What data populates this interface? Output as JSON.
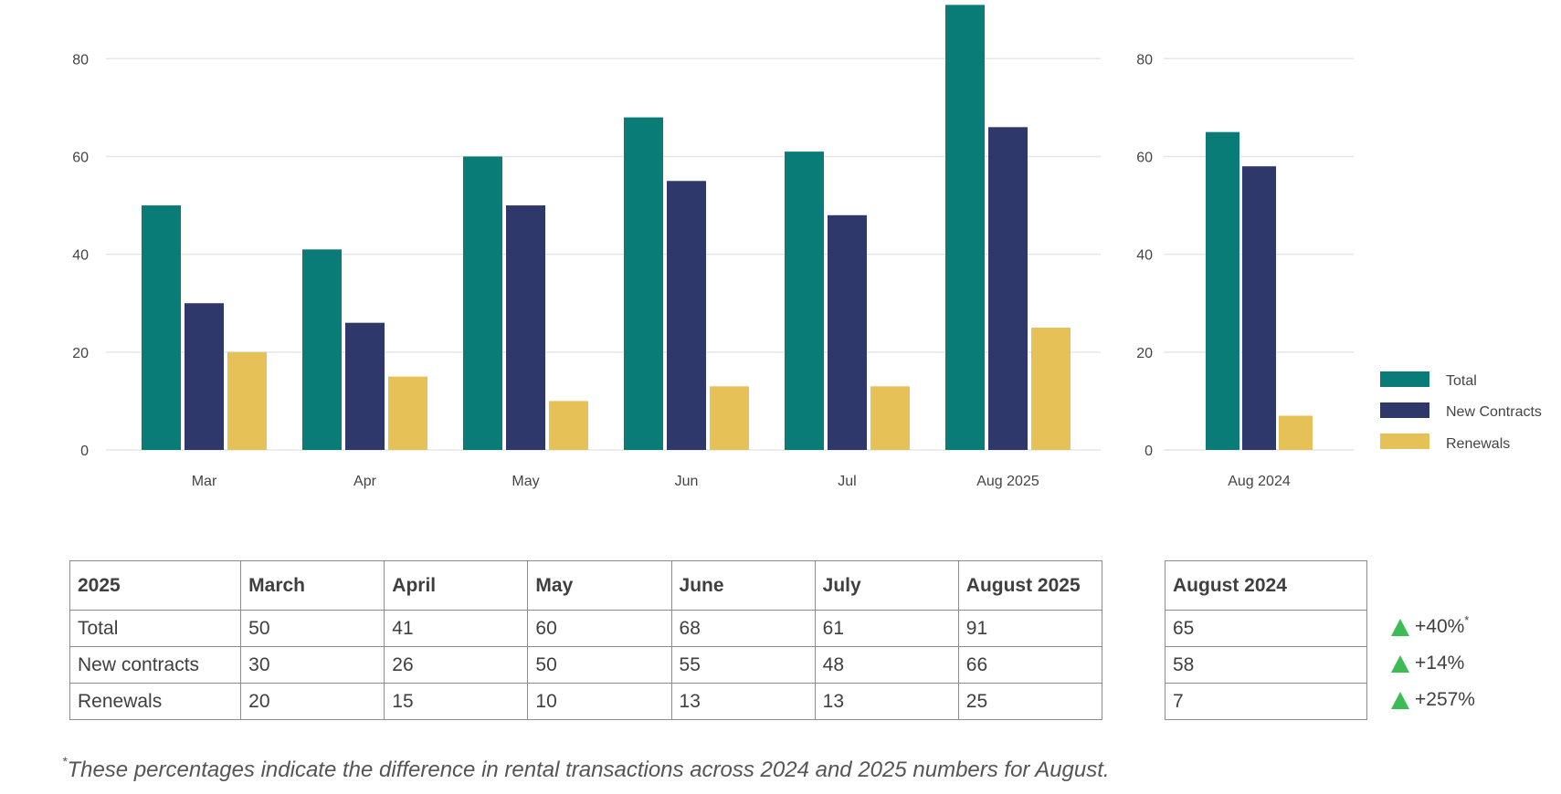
{
  "colors": {
    "total": "#0a7c78",
    "new_contracts": "#2f386b",
    "renewals": "#e5c158",
    "gridline": "#e6e6e6",
    "arrow_up": "#3dbb55"
  },
  "chart_data": [
    {
      "type": "bar",
      "categories": [
        "Mar",
        "Apr",
        "May",
        "Jun",
        "Jul",
        "Aug 2025"
      ],
      "series": [
        {
          "name": "Total",
          "values": [
            50,
            41,
            60,
            68,
            61,
            91
          ]
        },
        {
          "name": "New Contracts",
          "values": [
            30,
            26,
            50,
            55,
            48,
            66
          ]
        },
        {
          "name": "Renewals",
          "values": [
            20,
            15,
            10,
            13,
            13,
            25
          ]
        }
      ],
      "yticks": [
        0,
        20,
        40,
        60,
        80
      ],
      "ylim": [
        0,
        92
      ],
      "grid": true
    },
    {
      "type": "bar",
      "categories": [
        "Aug 2024"
      ],
      "series": [
        {
          "name": "Total",
          "values": [
            65
          ]
        },
        {
          "name": "New Contracts",
          "values": [
            58
          ]
        },
        {
          "name": "Renewals",
          "values": [
            7
          ]
        }
      ],
      "yticks": [
        0,
        20,
        40,
        60,
        80
      ],
      "ylim": [
        0,
        92
      ],
      "grid": true,
      "legend": "right"
    }
  ],
  "legend": {
    "items": [
      "Total",
      "New Contracts",
      "Renewals"
    ]
  },
  "table_2025": {
    "headers": [
      "2025",
      "March",
      "April",
      "May",
      "June",
      "July",
      "August 2025"
    ],
    "rows": [
      [
        "Total",
        "50",
        "41",
        "60",
        "68",
        "61",
        "91"
      ],
      [
        "New contracts",
        "30",
        "26",
        "50",
        "55",
        "48",
        "66"
      ],
      [
        "Renewals",
        "20",
        "15",
        "10",
        "13",
        "13",
        "25"
      ]
    ]
  },
  "table_2024": {
    "header": "August 2024",
    "values": [
      "65",
      "58",
      "7"
    ]
  },
  "changes": {
    "values": [
      "+40%",
      "+14%",
      "+257%"
    ],
    "mark": "*"
  },
  "footnote": {
    "mark": "*",
    "text": "These percentages indicate the difference in rental transactions across 2024 and 2025 numbers for August."
  }
}
